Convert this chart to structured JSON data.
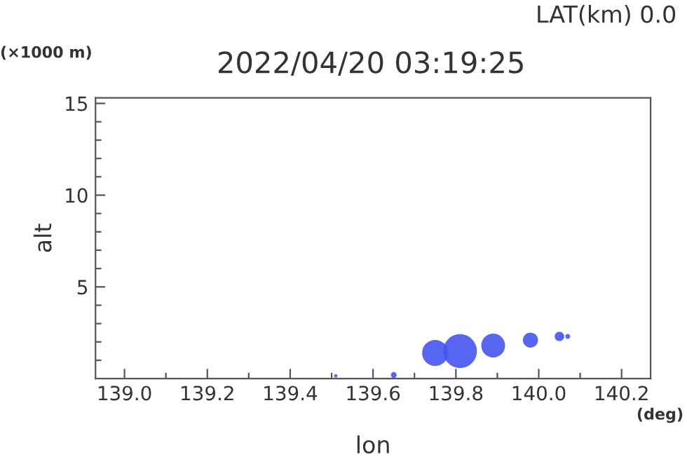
{
  "chart_data": {
    "type": "bubble",
    "title": "2022/04/20 03:19:25",
    "subtitle": "LAT(km) 0.0",
    "xlabel": "lon",
    "ylabel": "alt",
    "annotations": [
      "(×1000 m)",
      "(deg)"
    ],
    "x": [
      139.51,
      139.65,
      139.75,
      139.81,
      139.89,
      139.98,
      140.05,
      140.07
    ],
    "series": [
      {
        "color": "#4455ee",
        "values": [
          0.15,
          0.2,
          1.4,
          1.5,
          1.8,
          2.1,
          2.3,
          2.3
        ],
        "sizes": [
          0.01,
          0.03,
          0.6,
          1,
          0.5,
          0.2,
          0.08,
          0.02
        ]
      }
    ],
    "xlim": [
      138.93,
      140.27
    ],
    "ylim": [
      0,
      15.3
    ],
    "xticks": [
      {
        "value": 139.0,
        "label": "139.0"
      },
      {
        "value": 139.1,
        "label": null
      },
      {
        "value": 139.2,
        "label": "139.2"
      },
      {
        "value": 139.3,
        "label": null
      },
      {
        "value": 139.4,
        "label": "139.4"
      },
      {
        "value": 139.5,
        "label": null
      },
      {
        "value": 139.6,
        "label": "139.6"
      },
      {
        "value": 139.7,
        "label": null
      },
      {
        "value": 139.8,
        "label": "139.8"
      },
      {
        "value": 139.9,
        "label": null
      },
      {
        "value": 140.0,
        "label": "140.0"
      },
      {
        "value": 140.1,
        "label": null
      },
      {
        "value": 140.2,
        "label": "140.2"
      }
    ],
    "yticks": [
      {
        "value": 1,
        "label": null
      },
      {
        "value": 2,
        "label": null
      },
      {
        "value": 3,
        "label": null
      },
      {
        "value": 4,
        "label": null
      },
      5,
      {
        "value": 6,
        "label": null
      },
      {
        "value": 7,
        "label": null
      },
      {
        "value": 8,
        "label": null
      },
      {
        "value": 9,
        "label": null
      },
      10,
      {
        "value": 11,
        "label": null
      },
      {
        "value": 12,
        "label": null
      },
      {
        "value": 13,
        "label": null
      },
      {
        "value": 14,
        "label": null
      },
      15
    ],
    "grid": false,
    "legend": false,
    "marker": "circle"
  }
}
